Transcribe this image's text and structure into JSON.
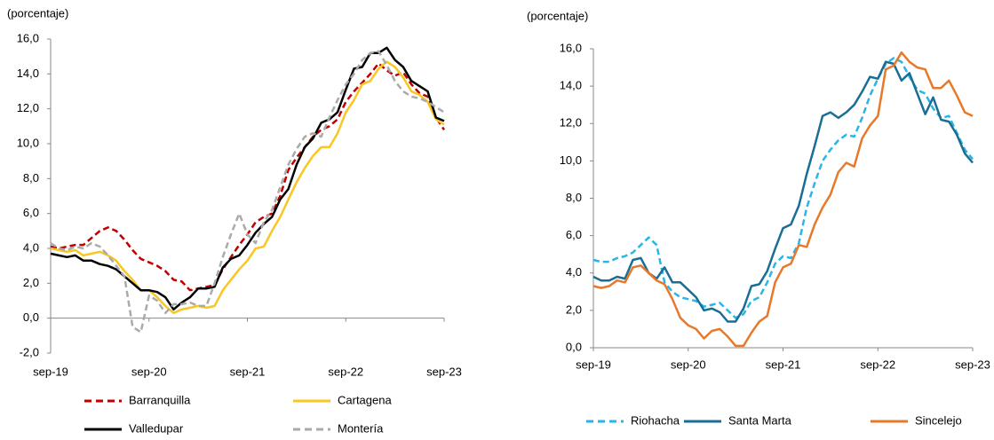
{
  "chart_data": [
    {
      "type": "line",
      "y_label": "(porcentaje)",
      "categories": [
        "sep-19",
        null,
        null,
        null,
        null,
        null,
        null,
        null,
        null,
        null,
        null,
        null,
        "sep-20",
        null,
        null,
        null,
        null,
        null,
        null,
        null,
        null,
        null,
        null,
        null,
        "sep-21",
        null,
        null,
        null,
        null,
        null,
        null,
        null,
        null,
        null,
        null,
        null,
        "sep-22",
        null,
        null,
        null,
        null,
        null,
        null,
        null,
        null,
        null,
        null,
        null,
        "sep-23"
      ],
      "ylim": [
        -2,
        16
      ],
      "yticks": [
        {
          "value": -2,
          "label": "-2,0"
        },
        {
          "value": 0,
          "label": "0,0"
        },
        {
          "value": 2,
          "label": "2,0"
        },
        {
          "value": 4,
          "label": "4,0"
        },
        {
          "value": 6,
          "label": "6,0"
        },
        {
          "value": 8,
          "label": "8,0"
        },
        {
          "value": 10,
          "label": "10,0"
        },
        {
          "value": 12,
          "label": "12,0"
        },
        {
          "value": 14,
          "label": "14,0"
        },
        {
          "value": 16,
          "label": "16,0"
        }
      ],
      "series": [
        {
          "name": "Barranquilla",
          "color": "#c00000",
          "dashed": true,
          "values": [
            4.1,
            4.0,
            4.1,
            4.2,
            4.2,
            4.6,
            5.0,
            5.2,
            5.0,
            4.5,
            3.9,
            3.4,
            3.2,
            3.0,
            2.7,
            2.2,
            2.1,
            1.6,
            1.7,
            1.8,
            1.9,
            2.8,
            3.5,
            4.2,
            4.8,
            5.5,
            5.8,
            6.0,
            7.0,
            8.5,
            9.2,
            9.8,
            10.4,
            10.8,
            11.0,
            11.4,
            12.4,
            13.0,
            13.5,
            14.0,
            14.6,
            14.2,
            13.9,
            14.1,
            13.4,
            12.9,
            12.7,
            11.5,
            10.8
          ]
        },
        {
          "name": "Cartagena",
          "color": "#f9c623",
          "dashed": false,
          "values": [
            4.0,
            3.9,
            3.8,
            3.9,
            3.6,
            3.7,
            3.8,
            3.6,
            3.3,
            2.7,
            2.2,
            1.6,
            1.6,
            1.2,
            0.7,
            0.3,
            0.5,
            0.6,
            0.7,
            0.6,
            0.7,
            1.6,
            2.2,
            2.8,
            3.3,
            4.0,
            4.1,
            5.0,
            5.8,
            6.8,
            7.8,
            8.6,
            9.3,
            9.8,
            9.8,
            10.6,
            11.8,
            12.5,
            13.4,
            13.6,
            14.3,
            14.7,
            14.4,
            13.8,
            13.0,
            12.8,
            12.4,
            11.4,
            11.1
          ]
        },
        {
          "name": "Valledupar",
          "color": "#000000",
          "dashed": false,
          "values": [
            3.7,
            3.6,
            3.5,
            3.6,
            3.3,
            3.3,
            3.1,
            3.0,
            2.8,
            2.4,
            2.0,
            1.6,
            1.6,
            1.5,
            1.2,
            0.5,
            0.9,
            1.2,
            1.7,
            1.7,
            1.8,
            2.9,
            3.4,
            3.6,
            4.2,
            4.9,
            5.4,
            5.8,
            6.8,
            7.4,
            8.8,
            9.8,
            10.3,
            11.2,
            11.4,
            11.8,
            13.1,
            14.3,
            14.4,
            15.2,
            15.2,
            15.5,
            14.8,
            14.4,
            13.6,
            13.3,
            13.0,
            11.5,
            11.3
          ]
        },
        {
          "name": "Montería",
          "color": "#aaaaaa",
          "dashed": true,
          "values": [
            4.3,
            4.0,
            3.9,
            4.1,
            4.0,
            4.3,
            4.1,
            3.6,
            3.0,
            2.4,
            -0.5,
            -0.8,
            1.3,
            1.0,
            0.3,
            0.8,
            0.8,
            0.9,
            0.7,
            0.7,
            2.0,
            3.5,
            4.8,
            6.0,
            4.8,
            4.3,
            5.5,
            6.2,
            7.5,
            8.8,
            9.7,
            10.4,
            10.6,
            10.4,
            11.5,
            12.5,
            13.4,
            14.0,
            14.8,
            15.2,
            15.3,
            14.5,
            13.6,
            13.0,
            12.7,
            12.6,
            12.4,
            12.1,
            11.8
          ]
        }
      ]
    },
    {
      "type": "line",
      "y_label": "(porcentaje)",
      "categories": [
        "sep-19",
        null,
        null,
        null,
        null,
        null,
        null,
        null,
        null,
        null,
        null,
        null,
        "sep-20",
        null,
        null,
        null,
        null,
        null,
        null,
        null,
        null,
        null,
        null,
        null,
        "sep-21",
        null,
        null,
        null,
        null,
        null,
        null,
        null,
        null,
        null,
        null,
        null,
        "sep-22",
        null,
        null,
        null,
        null,
        null,
        null,
        null,
        null,
        null,
        null,
        null,
        "sep-23"
      ],
      "ylim": [
        0,
        16
      ],
      "yticks": [
        {
          "value": 0,
          "label": "0,0"
        },
        {
          "value": 2,
          "label": "2,0"
        },
        {
          "value": 4,
          "label": "4,0"
        },
        {
          "value": 6,
          "label": "6,0"
        },
        {
          "value": 8,
          "label": "8,0"
        },
        {
          "value": 10,
          "label": "10,0"
        },
        {
          "value": 12,
          "label": "12,0"
        },
        {
          "value": 14,
          "label": "14,0"
        },
        {
          "value": 16,
          "label": "16,0"
        }
      ],
      "series": [
        {
          "name": "Riohacha",
          "color": "#29b5e8",
          "dashed": true,
          "values": [
            4.7,
            4.6,
            4.6,
            4.8,
            4.9,
            5.1,
            5.5,
            5.9,
            5.5,
            3.5,
            3.0,
            2.7,
            2.6,
            2.5,
            2.2,
            2.3,
            2.4,
            2.0,
            1.6,
            1.8,
            2.5,
            2.7,
            3.5,
            4.5,
            4.9,
            4.8,
            5.6,
            7.5,
            8.8,
            10.0,
            10.6,
            11.1,
            11.4,
            11.3,
            12.3,
            13.5,
            14.4,
            15.2,
            15.5,
            15.3,
            14.5,
            13.8,
            13.6,
            12.8,
            12.3,
            12.4,
            11.5,
            10.6,
            10.1
          ]
        },
        {
          "name": "Santa Marta",
          "color": "#1a6e96",
          "dashed": false,
          "values": [
            3.8,
            3.6,
            3.6,
            3.8,
            3.7,
            4.7,
            4.8,
            4.0,
            3.7,
            4.3,
            3.5,
            3.5,
            3.1,
            2.7,
            2.0,
            2.1,
            1.9,
            1.4,
            1.4,
            2.1,
            3.3,
            3.4,
            4.1,
            5.3,
            6.4,
            6.6,
            7.6,
            9.3,
            10.8,
            12.4,
            12.6,
            12.3,
            12.6,
            13.0,
            13.7,
            14.5,
            14.4,
            15.3,
            15.2,
            14.3,
            14.7,
            13.6,
            12.5,
            13.4,
            12.2,
            12.1,
            11.4,
            10.4,
            9.9
          ]
        },
        {
          "name": "Sincelejo",
          "color": "#e8782a",
          "dashed": false,
          "values": [
            3.3,
            3.2,
            3.3,
            3.6,
            3.5,
            4.3,
            4.4,
            4.0,
            3.6,
            3.4,
            2.6,
            1.6,
            1.2,
            1.0,
            0.5,
            0.9,
            1.0,
            0.6,
            0.1,
            0.1,
            0.8,
            1.4,
            1.7,
            3.5,
            4.3,
            4.5,
            5.5,
            5.4,
            6.6,
            7.5,
            8.2,
            9.4,
            9.9,
            9.7,
            11.2,
            11.9,
            12.4,
            14.9,
            15.1,
            15.8,
            15.3,
            15.0,
            14.9,
            13.9,
            13.9,
            14.3,
            13.5,
            12.6,
            12.4
          ]
        }
      ]
    }
  ]
}
